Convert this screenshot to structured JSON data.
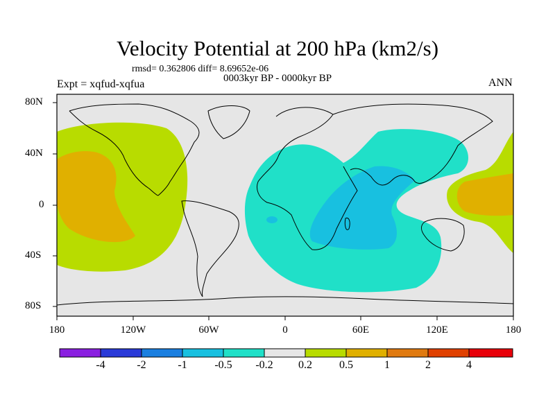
{
  "title": "Velocity Potential at 200 hPa (km2/s)",
  "stats": "rmsd= 0.362806 diff= 8.69652e-06",
  "period": "0003kyr BP - 0000kyr BP",
  "experiment": "Expt = xqfud-xqfua",
  "season": "ANN",
  "lat_labels": [
    "80N",
    "40N",
    "0",
    "40S",
    "80S"
  ],
  "lon_labels": [
    "180",
    "120W",
    "60W",
    "0",
    "60E",
    "120E",
    "180"
  ],
  "colorbar": {
    "labels": [
      "-4",
      "-2",
      "-1",
      "-0.5",
      "-0.2",
      "0.2",
      "0.5",
      "1",
      "2",
      "4"
    ],
    "colors": [
      "#8a1fe0",
      "#2a3ad8",
      "#1a7fe0",
      "#18c0e0",
      "#20e0c8",
      "#e6e6e6",
      "#b8dc00",
      "#e0b000",
      "#e07a10",
      "#e04000",
      "#e8000a"
    ]
  },
  "fill_colors": {
    "neutral": "#e6e6e6",
    "weak_positive": "#b8dc00",
    "moderate_positive": "#e0b000",
    "weak_negative": "#20e0c8",
    "moderate_negative": "#18c0e0"
  }
}
